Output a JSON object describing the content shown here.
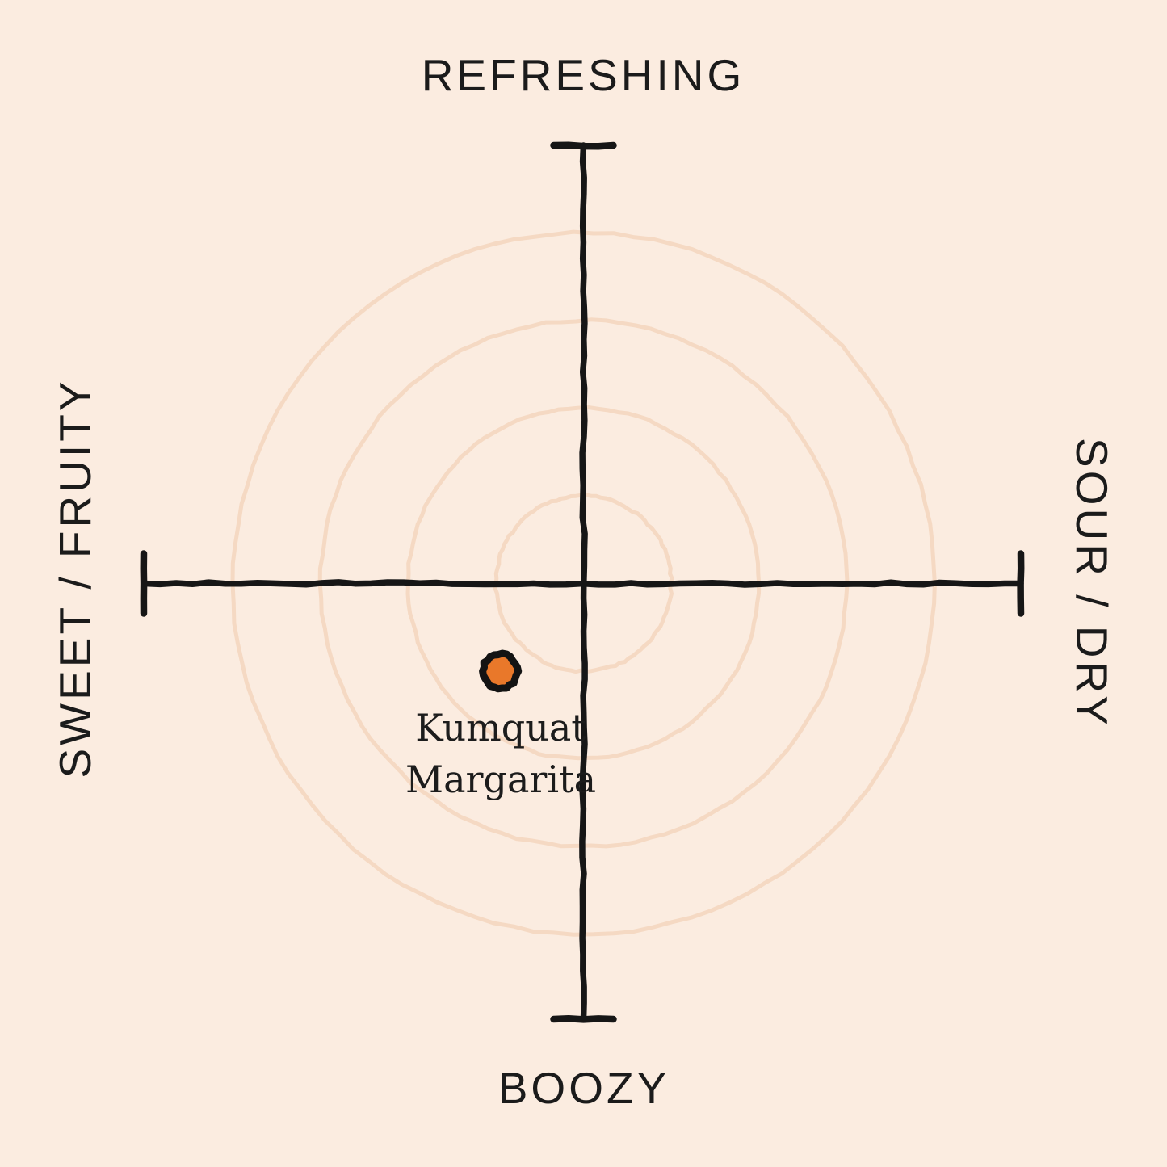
{
  "chart_data": {
    "type": "scatter",
    "title": "",
    "axes": {
      "top": "REFRESHING",
      "bottom": "BOOZY",
      "left": "SWEET / FRUITY",
      "right": "SOUR / DRY"
    },
    "xlim": [
      -1,
      1
    ],
    "ylim": [
      -1,
      1
    ],
    "rings": [
      0.2,
      0.4,
      0.6,
      0.8
    ],
    "grid": "concentric-rings",
    "legend": "none",
    "points": [
      {
        "label": "Kumquat Margarita",
        "label_lines": [
          "Kumquat",
          "Margarita"
        ],
        "x": -0.19,
        "y": -0.2
      }
    ]
  },
  "palette": {
    "background": "#fbece0",
    "ring": "#f5d9c3",
    "axis": "#161616",
    "text": "#1b1b1b",
    "point_fill": "#e9782a",
    "point_stroke": "#131313"
  }
}
